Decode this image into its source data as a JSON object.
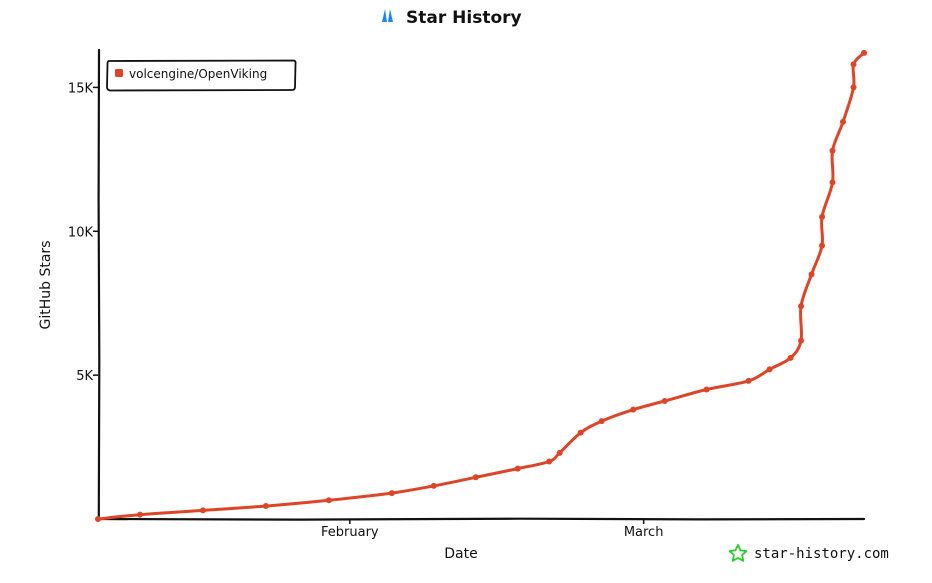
{
  "chart_data": {
    "type": "line",
    "title": "Star History",
    "xlabel": "Date",
    "ylabel": "GitHub Stars",
    "x_ticks": [
      {
        "label": "February",
        "date": "2026-02-01"
      },
      {
        "label": "March",
        "date": "2026-03-01"
      }
    ],
    "y_ticks": [
      {
        "label": "5K",
        "value": 5000
      },
      {
        "label": "10K",
        "value": 10000
      },
      {
        "label": "15K",
        "value": 15000
      }
    ],
    "xlim": [
      "2026-01-08",
      "2026-03-22"
    ],
    "ylim": [
      0,
      16300
    ],
    "grid": false,
    "legend_position": "top-left",
    "series": [
      {
        "name": "volcengine/OpenViking",
        "color": "#dd4528",
        "points": [
          {
            "x": "2026-01-08",
            "y": 0
          },
          {
            "x": "2026-01-12",
            "y": 150
          },
          {
            "x": "2026-01-18",
            "y": 300
          },
          {
            "x": "2026-01-24",
            "y": 450
          },
          {
            "x": "2026-01-30",
            "y": 650
          },
          {
            "x": "2026-02-05",
            "y": 900
          },
          {
            "x": "2026-02-09",
            "y": 1150
          },
          {
            "x": "2026-02-13",
            "y": 1450
          },
          {
            "x": "2026-02-17",
            "y": 1750
          },
          {
            "x": "2026-02-20",
            "y": 2000
          },
          {
            "x": "2026-02-21",
            "y": 2300
          },
          {
            "x": "2026-02-23",
            "y": 3000
          },
          {
            "x": "2026-02-25",
            "y": 3400
          },
          {
            "x": "2026-02-28",
            "y": 3800
          },
          {
            "x": "2026-03-03",
            "y": 4100
          },
          {
            "x": "2026-03-07",
            "y": 4500
          },
          {
            "x": "2026-03-11",
            "y": 4800
          },
          {
            "x": "2026-03-13",
            "y": 5200
          },
          {
            "x": "2026-03-15",
            "y": 5600
          },
          {
            "x": "2026-03-16",
            "y": 6200
          },
          {
            "x": "2026-03-16",
            "y": 7400
          },
          {
            "x": "2026-03-17",
            "y": 8500
          },
          {
            "x": "2026-03-18",
            "y": 9500
          },
          {
            "x": "2026-03-18",
            "y": 10500
          },
          {
            "x": "2026-03-19",
            "y": 11700
          },
          {
            "x": "2026-03-19",
            "y": 12800
          },
          {
            "x": "2026-03-20",
            "y": 13800
          },
          {
            "x": "2026-03-21",
            "y": 15000
          },
          {
            "x": "2026-03-21",
            "y": 15800
          },
          {
            "x": "2026-03-22",
            "y": 16200
          }
        ]
      }
    ]
  },
  "watermark": {
    "text": "star-history.com",
    "icon": "star-outline-icon",
    "icon_color": "#2bc92b"
  },
  "title_icon": {
    "name": "star-history-logo-icon",
    "color": "#1e88e5"
  }
}
